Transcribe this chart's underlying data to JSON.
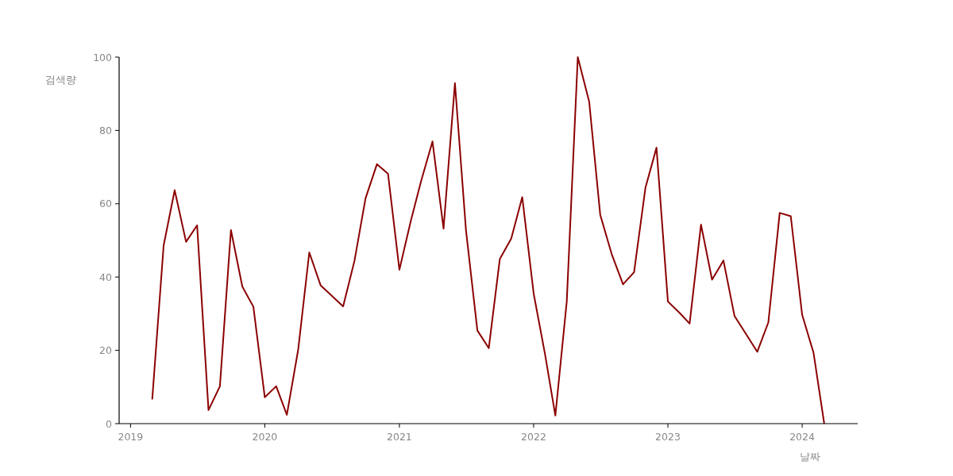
{
  "chart_data": {
    "type": "line",
    "xlabel": "날짜",
    "ylabel": "검색량",
    "x": [
      "2019-03",
      "2019-04",
      "2019-05",
      "2019-06",
      "2019-07",
      "2019-08",
      "2019-09",
      "2019-10",
      "2019-11",
      "2019-12",
      "2020-01",
      "2020-02",
      "2020-03",
      "2020-04",
      "2020-05",
      "2020-06",
      "2020-07",
      "2020-08",
      "2020-09",
      "2020-10",
      "2020-11",
      "2020-12",
      "2021-01",
      "2021-02",
      "2021-03",
      "2021-04",
      "2021-05",
      "2021-06",
      "2021-07",
      "2021-08",
      "2021-09",
      "2021-10",
      "2021-11",
      "2021-12",
      "2022-01",
      "2022-02",
      "2022-03",
      "2022-04",
      "2022-05",
      "2022-06",
      "2022-07",
      "2022-08",
      "2022-09",
      "2022-10",
      "2022-11",
      "2022-12",
      "2023-01",
      "2023-02",
      "2023-03",
      "2023-04",
      "2023-05",
      "2023-06",
      "2023-07",
      "2023-08",
      "2023-09",
      "2023-10",
      "2023-11",
      "2023-12",
      "2024-01",
      "2024-02",
      "2024-03"
    ],
    "series": [
      {
        "color": "#8b0000",
        "values": [
          6.6,
          48.6,
          63.7,
          49.6,
          54.1,
          3.7,
          10.2,
          52.8,
          37.4,
          31.9,
          7.2,
          10.2,
          2.4,
          20.3,
          46.7,
          37.7,
          34.9,
          32.0,
          44.5,
          61.5,
          70.8,
          68.2,
          42.0,
          55.3,
          66.2,
          77.0,
          53.2,
          92.9,
          52.8,
          25.4,
          20.6,
          44.9,
          50.5,
          61.8,
          35.5,
          18.9,
          2.2,
          33.3,
          100,
          87.8,
          57.0,
          46.3,
          38.0,
          41.3,
          64.4,
          75.3,
          33.3,
          30.3,
          27.3,
          54.3,
          39.3,
          44.5,
          29.4,
          24.5,
          19.6,
          27.6,
          57.5,
          56.6,
          29.7,
          19.3,
          0
        ]
      }
    ],
    "xlim": [
      "2018-12-01",
      "2024-05-31"
    ],
    "xticks": [
      "2019",
      "2020",
      "2021",
      "2022",
      "2023",
      "2024"
    ],
    "ylim": [
      0,
      100
    ],
    "yticks": [
      0,
      20,
      40,
      60,
      80,
      100
    ],
    "line_style": "solid"
  }
}
